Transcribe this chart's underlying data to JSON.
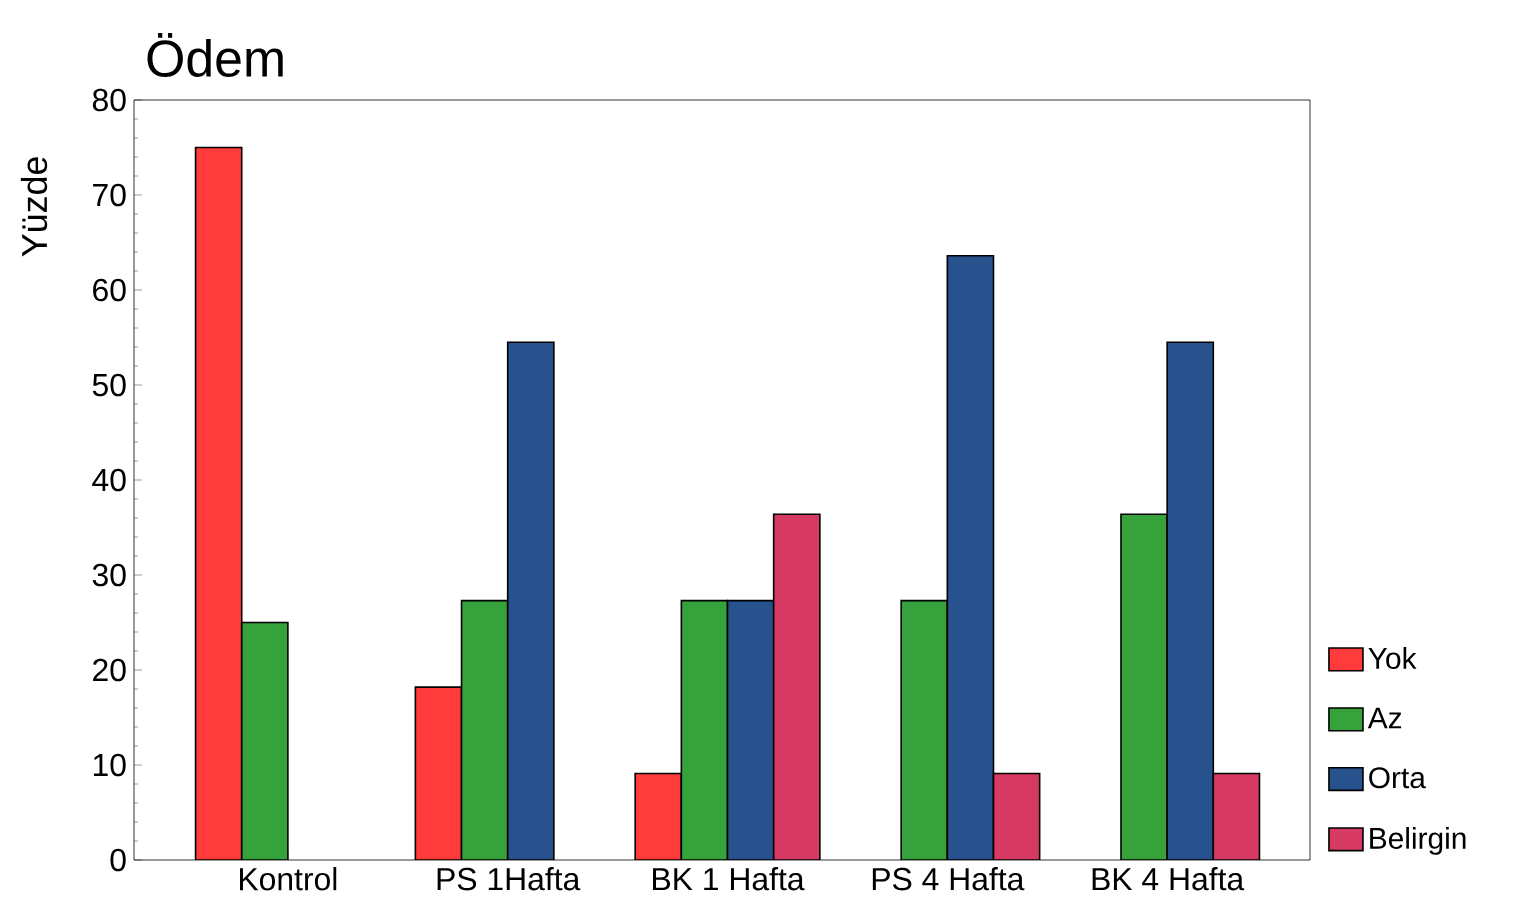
{
  "chart_data": {
    "type": "bar",
    "title": "Ödem",
    "ylabel": "Yüzde",
    "categories": [
      "Kontrol",
      "PS 1Hafta",
      "BK 1 Hafta",
      "PS 4 Hafta",
      "BK 4 Hafta"
    ],
    "series": [
      {
        "name": "Yok",
        "color": "#ff3b3b",
        "values": [
          75,
          18.2,
          9.1,
          null,
          null
        ]
      },
      {
        "name": "Az",
        "color": "#36a23c",
        "values": [
          25,
          27.3,
          27.3,
          27.3,
          36.4
        ]
      },
      {
        "name": "Orta",
        "color": "#28528e",
        "values": [
          null,
          54.5,
          27.3,
          63.6,
          54.5
        ]
      },
      {
        "name": "Belirgin",
        "color": "#d63a62",
        "values": [
          null,
          null,
          36.4,
          9.1,
          9.1
        ]
      }
    ],
    "ylim": [
      0,
      80
    ],
    "yticks": [
      0,
      10,
      20,
      30,
      40,
      50,
      60,
      70,
      80
    ],
    "grid": false,
    "legend": "right"
  }
}
